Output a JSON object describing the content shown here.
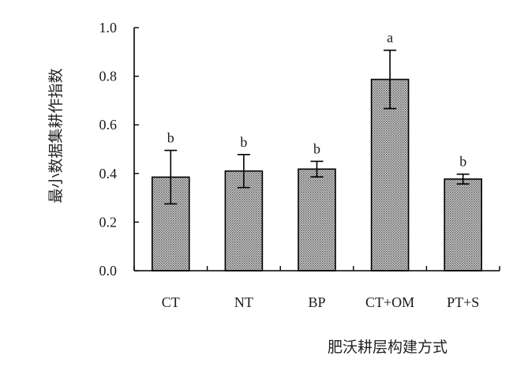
{
  "chart_data": {
    "type": "bar",
    "xlabel": "肥沃耕层构建方式",
    "ylabel": "最小数据集耕作指数",
    "ylim": [
      0,
      1.0
    ],
    "yticks": [
      "0.0",
      "0.2",
      "0.4",
      "0.6",
      "0.8",
      "1.0"
    ],
    "categories": [
      "CT",
      "NT",
      "BP",
      "CT+OM",
      "PT+S"
    ],
    "values": [
      0.385,
      0.41,
      0.418,
      0.787,
      0.377
    ],
    "errors": [
      0.11,
      0.068,
      0.032,
      0.12,
      0.02
    ],
    "significance": [
      "b",
      "b",
      "b",
      "a",
      "b"
    ],
    "bar_color": "#b8b8b8",
    "grid": false
  }
}
